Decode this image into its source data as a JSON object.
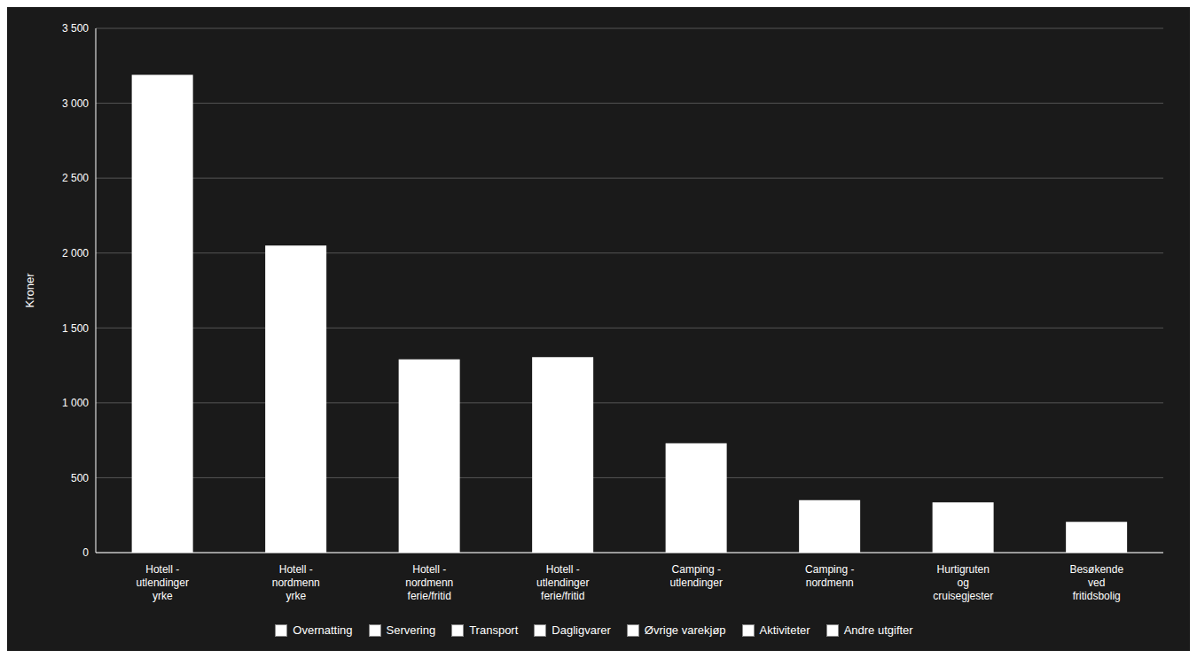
{
  "chart_data": {
    "type": "bar",
    "ylabel": "Kroner",
    "categories": [
      "Hotell -\nutlendinger\nyrke",
      "Hotell -\nnordmenn\nyrke",
      "Hotell -\nnordmenn\nferie/fritid",
      "Hotell -\nutlendinger\nferie/fritid",
      "Camping -\nutlendinger",
      "Camping -\nnordmenn",
      "Hurtigruten\nog\ncruisegjester",
      "Besøkende\nved\nfritidsbolig"
    ],
    "values": [
      3190,
      2050,
      1290,
      1305,
      730,
      350,
      335,
      205
    ],
    "color": "#ffffff",
    "ylim": [
      0,
      3500
    ],
    "yticks": [
      0,
      500,
      {
        "value": 1000,
        "label": "1 000"
      },
      {
        "value": 1500,
        "label": "1 500"
      },
      {
        "value": 2000,
        "label": "2 000"
      },
      {
        "value": 2500,
        "label": "2 500"
      },
      {
        "value": 3000,
        "label": "3 000"
      },
      {
        "value": 3500,
        "label": "3 500"
      }
    ],
    "grid": true,
    "legend": "bottom",
    "legend_entries": [
      {
        "name": "Overnatting",
        "color": "#ffffff"
      },
      {
        "name": "Servering",
        "color": "#ffffff"
      },
      {
        "name": "Transport",
        "color": "#ffffff"
      },
      {
        "name": "Dagligvarer",
        "color": "#ffffff"
      },
      {
        "name": "Øvrige varekjøp",
        "color": "#ffffff"
      },
      {
        "name": "Aktiviteter",
        "color": "#ffffff"
      },
      {
        "name": "Andre utgifter",
        "color": "#ffffff"
      }
    ]
  }
}
